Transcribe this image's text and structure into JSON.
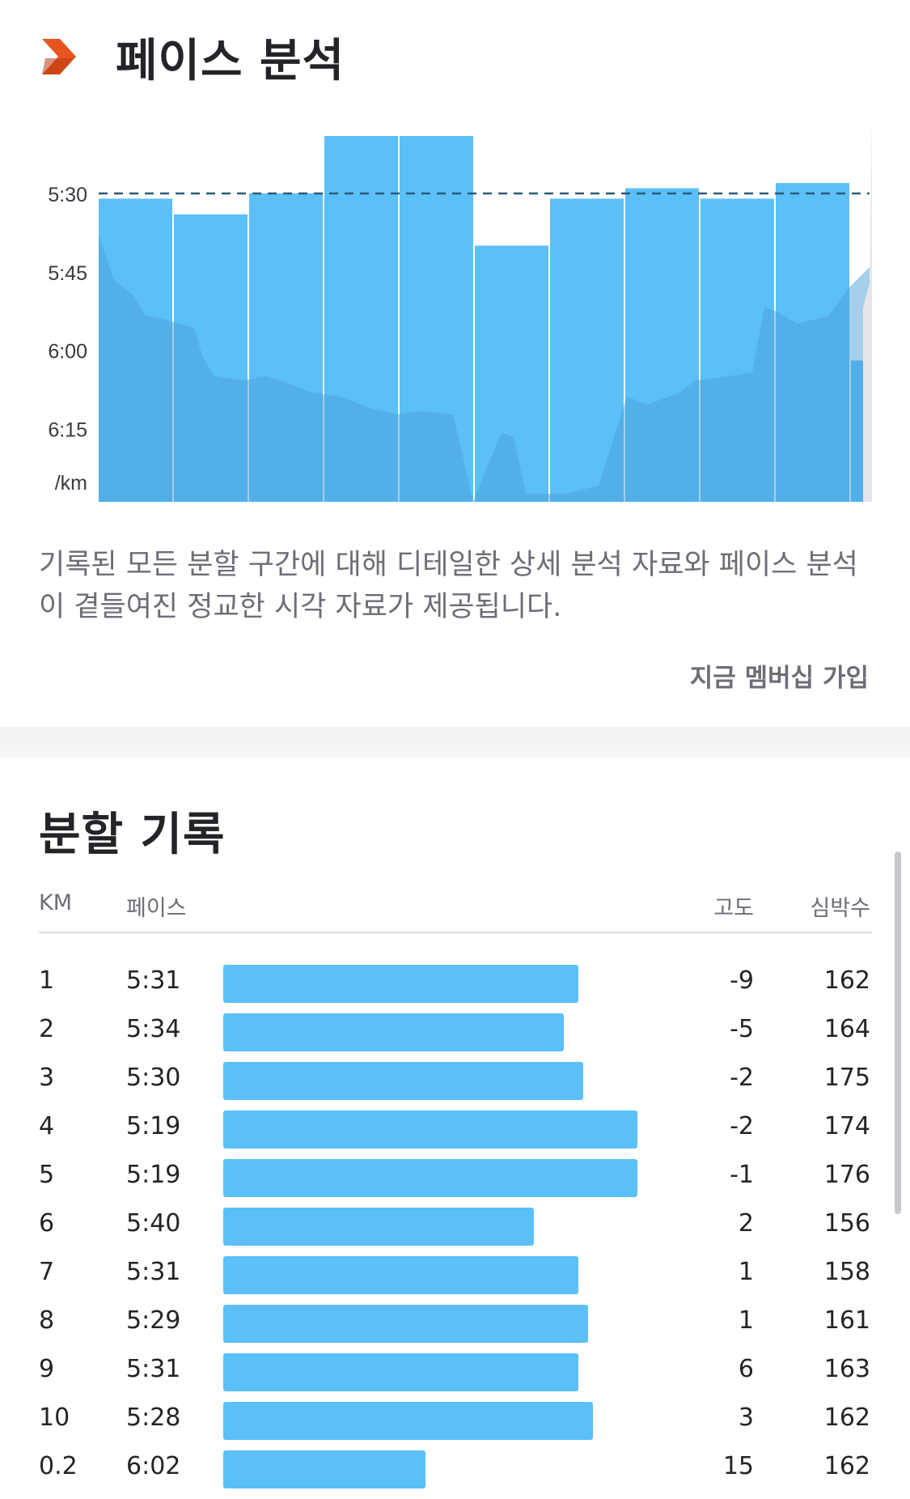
{
  "pace_section": {
    "title": "페이스 분석",
    "icon": "chevron-right-icon",
    "description": "기록된 모든 분할 구간에 대해 디테일한 상세 분석 자료와 페이스 분석이 곁들여진 정교한 시각 자료가 제공됩니다.",
    "join_label": "지금 멤버십 가입",
    "accent_color": "#e8541d"
  },
  "chart_data": {
    "type": "bar",
    "y_ticks": [
      "5:30",
      "5:45",
      "6:00",
      "6:15"
    ],
    "y_unit": "/km",
    "reference_line": "5:30",
    "categories": [
      "1",
      "2",
      "3",
      "4",
      "5",
      "6",
      "7",
      "8",
      "9",
      "10",
      "0.2"
    ],
    "values": [
      "5:31",
      "5:34",
      "5:30",
      "5:19",
      "5:19",
      "5:40",
      "5:31",
      "5:29",
      "5:31",
      "5:28",
      "6:02"
    ],
    "bar_color": "#5bbff8",
    "reference_line_color": "#2b5c78"
  },
  "splits": {
    "title": "분할 기록",
    "columns": {
      "km": "KM",
      "pace": "페이스",
      "elevation": "고도",
      "heart_rate": "심박수"
    },
    "rows": [
      {
        "km": "1",
        "pace": "5:31",
        "elevation": "-9",
        "heart_rate": "162"
      },
      {
        "km": "2",
        "pace": "5:34",
        "elevation": "-5",
        "heart_rate": "164"
      },
      {
        "km": "3",
        "pace": "5:30",
        "elevation": "-2",
        "heart_rate": "175"
      },
      {
        "km": "4",
        "pace": "5:19",
        "elevation": "-2",
        "heart_rate": "174"
      },
      {
        "km": "5",
        "pace": "5:19",
        "elevation": "-1",
        "heart_rate": "176"
      },
      {
        "km": "6",
        "pace": "5:40",
        "elevation": "2",
        "heart_rate": "156"
      },
      {
        "km": "7",
        "pace": "5:31",
        "elevation": "1",
        "heart_rate": "158"
      },
      {
        "km": "8",
        "pace": "5:29",
        "elevation": "1",
        "heart_rate": "161"
      },
      {
        "km": "9",
        "pace": "5:31",
        "elevation": "6",
        "heart_rate": "163"
      },
      {
        "km": "10",
        "pace": "5:28",
        "elevation": "3",
        "heart_rate": "162"
      },
      {
        "km": "0.2",
        "pace": "6:02",
        "elevation": "15",
        "heart_rate": "162"
      }
    ]
  }
}
